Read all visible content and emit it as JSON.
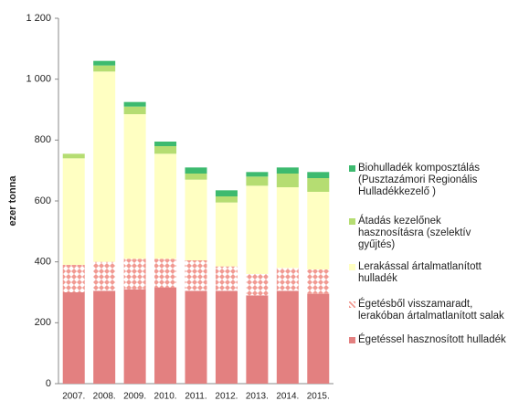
{
  "chart_data": {
    "type": "stacked-bar",
    "ylabel": "ezer tonna",
    "categories": [
      "2007.",
      "2008.",
      "2009.",
      "2010.",
      "2011.",
      "2012.",
      "2013.",
      "2014.",
      "2015."
    ],
    "series": [
      {
        "name": "Égetéssel hasznosított hulladék",
        "color": "#e38080",
        "values": [
          300,
          305,
          310,
          315,
          305,
          305,
          290,
          305,
          295
        ]
      },
      {
        "name": "Égetésből visszamaradt, lerakóban ártalmatlanított salak",
        "color": "#f19a92",
        "pattern": "checker",
        "values": [
          90,
          95,
          100,
          95,
          100,
          80,
          70,
          75,
          80
        ]
      },
      {
        "name": "Lerakással ártalmatlanított hulladék",
        "color": "#ffffc2",
        "values": [
          350,
          625,
          475,
          345,
          265,
          210,
          290,
          265,
          255
        ]
      },
      {
        "name": "Átadás kezelőnek hasznosításra (szelektív gyűjtés)",
        "color": "#b5dd72",
        "values": [
          15,
          20,
          25,
          25,
          20,
          20,
          30,
          45,
          45
        ]
      },
      {
        "name": "Biohulladék komposztálás (Pusztazámori Regionális Hulladékkezelő )",
        "color": "#3dba6f",
        "values": [
          0,
          15,
          15,
          15,
          20,
          20,
          15,
          20,
          20
        ]
      }
    ],
    "ylim": [
      0,
      1200
    ],
    "yticks": [
      0,
      200,
      400,
      600,
      800,
      {
        "value": 1000,
        "label": "1 000"
      },
      {
        "value": 1200,
        "label": "1 200"
      }
    ]
  }
}
